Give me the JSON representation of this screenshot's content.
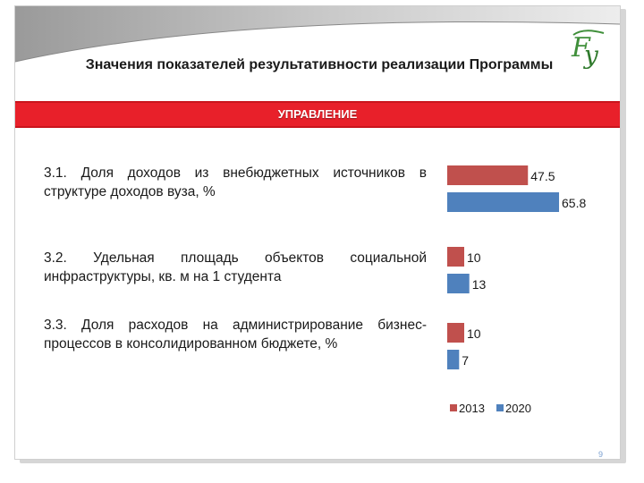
{
  "slide": {
    "title": "Значения показателей результативности реализации Программы",
    "section_banner": "УПРАВЛЕНИЕ",
    "page_number": "9",
    "accent_color": "#e8202a",
    "logo_icon": "university-monogram-logo"
  },
  "indicators": [
    {
      "label": "3.1. Доля доходов из внебюджетных источников в структуре доходов вуза, %"
    },
    {
      "label": "3.2. Удельная площадь объектов социальной инфраструктуры, кв. м на 1 студента"
    },
    {
      "label": "3.3. Доля расходов на администрирование бизнес-процессов в консолидированном бюджете, %"
    }
  ],
  "chart_data": {
    "type": "bar",
    "orientation": "horizontal",
    "categories": [
      "3.1",
      "3.2",
      "3.3"
    ],
    "series": [
      {
        "name": "2013",
        "values": [
          47.5,
          10,
          10
        ],
        "value_labels": [
          "47.5",
          "10",
          "10"
        ],
        "color": "#c0504d"
      },
      {
        "name": "2020",
        "values": [
          65.8,
          13,
          7
        ],
        "value_labels": [
          "65.8",
          "13",
          "7"
        ],
        "color": "#4f81bd"
      }
    ],
    "legend_position": "bottom",
    "grid": false
  }
}
